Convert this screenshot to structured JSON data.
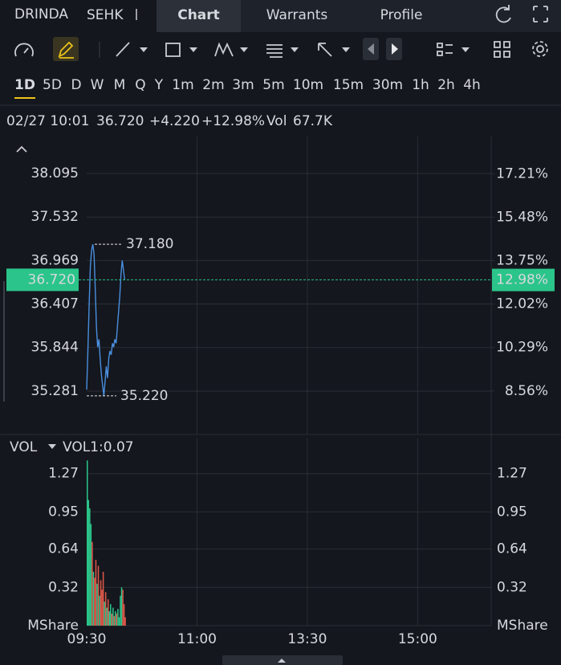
{
  "header": {
    "symbol": "DRINDA",
    "exchange": "SEHK",
    "tabs": [
      "Chart",
      "Warrants",
      "Profile"
    ],
    "active_tab": 0
  },
  "periods": {
    "items": [
      "1D",
      "5D",
      "D",
      "W",
      "M",
      "Q",
      "Y",
      "1m",
      "2m",
      "3m",
      "5m",
      "10m",
      "15m",
      "30m",
      "1h",
      "2h",
      "4h"
    ],
    "active": 0
  },
  "quote": {
    "time": "02/27 10:01",
    "price": "36.720",
    "change": "+4.220",
    "change_pct": "+12.98%",
    "vol_label": "Vol",
    "volume": "67.7K"
  },
  "chart_data": [
    {
      "type": "line",
      "color": "#4a8fe0",
      "x": [
        0,
        1,
        2,
        3,
        4,
        5,
        6,
        7,
        8,
        9,
        10,
        11,
        12,
        13,
        14,
        15,
        16,
        17,
        18,
        19,
        20,
        21,
        22,
        23,
        24,
        25,
        26,
        27,
        28,
        29,
        30,
        31
      ],
      "values": [
        35.3,
        35.8,
        36.4,
        36.9,
        37.1,
        37.18,
        37.05,
        36.6,
        36.1,
        35.85,
        35.95,
        35.7,
        35.5,
        35.35,
        35.22,
        35.4,
        35.6,
        35.45,
        35.7,
        35.8,
        35.75,
        35.9,
        35.85,
        35.95,
        35.9,
        36.1,
        36.3,
        36.5,
        36.8,
        36.97,
        36.85,
        36.72
      ],
      "xlim": [
        0,
        330
      ],
      "ylim": [
        34.73,
        38.573
      ],
      "yticks": [
        38.095,
        37.532,
        36.969,
        36.407,
        35.844,
        35.281
      ],
      "y2lim": [
        6.86,
        18.69
      ],
      "y2ticks": [
        {
          "value": 17.21,
          "label": "17.21%"
        },
        {
          "value": 15.48,
          "label": "15.48%"
        },
        {
          "value": 13.75,
          "label": "13.75%"
        },
        {
          "value": 12.02,
          "label": "12.02%"
        },
        {
          "value": 10.29,
          "label": "10.29%"
        },
        {
          "value": 8.56,
          "label": "8.56%"
        }
      ],
      "annotations": [
        {
          "value": 37.18,
          "label": "37.180"
        },
        {
          "value": 35.22,
          "label": "35.220"
        }
      ],
      "last": {
        "value": 36.72,
        "label": "36.720",
        "pct_value": 12.98,
        "pct_label": "12.98%",
        "color": "#2bc48a"
      },
      "grid": true
    },
    {
      "type": "bar",
      "title": "VOL",
      "subtitle": "VOL1:0.07",
      "values": [
        1.38,
        1.05,
        0.98,
        0.85,
        0.7,
        0.45,
        0.4,
        0.55,
        0.35,
        0.5,
        0.25,
        0.38,
        0.3,
        0.45,
        0.2,
        0.28,
        0.15,
        0.22,
        0.12,
        0.18,
        0.1,
        0.15,
        0.08,
        0.12,
        0.1,
        0.14,
        0.07,
        0.25,
        0.32,
        0.3,
        0.18,
        0.07
      ],
      "colors": [
        "#2bc48a",
        "#2bc48a",
        "#2bc48a",
        "#2bc48a",
        "#e0584a",
        "#2bc48a",
        "#e0584a",
        "#e0584a",
        "#2bc48a",
        "#e0584a",
        "#2bc48a",
        "#e0584a",
        "#e0584a",
        "#e0584a",
        "#2bc48a",
        "#e0584a",
        "#2bc48a",
        "#e0584a",
        "#2bc48a",
        "#2bc48a",
        "#e0584a",
        "#2bc48a",
        "#e0584a",
        "#2bc48a",
        "#e0584a",
        "#2bc48a",
        "#2bc48a",
        "#2bc48a",
        "#2bc48a",
        "#e0584a",
        "#e0584a",
        "#e0584a"
      ],
      "xlim": [
        0,
        330
      ],
      "xticks": [
        {
          "value": 0,
          "label": "09:30"
        },
        {
          "value": 90,
          "label": "11:00"
        },
        {
          "value": 180,
          "label": "13:30"
        },
        {
          "value": 270,
          "label": "15:00"
        }
      ],
      "ylim": [
        0,
        1.57
      ],
      "yticks": [
        {
          "value": 0,
          "label": "MShare"
        },
        0.32,
        0.64,
        0.95,
        1.27
      ],
      "grid": true
    }
  ]
}
